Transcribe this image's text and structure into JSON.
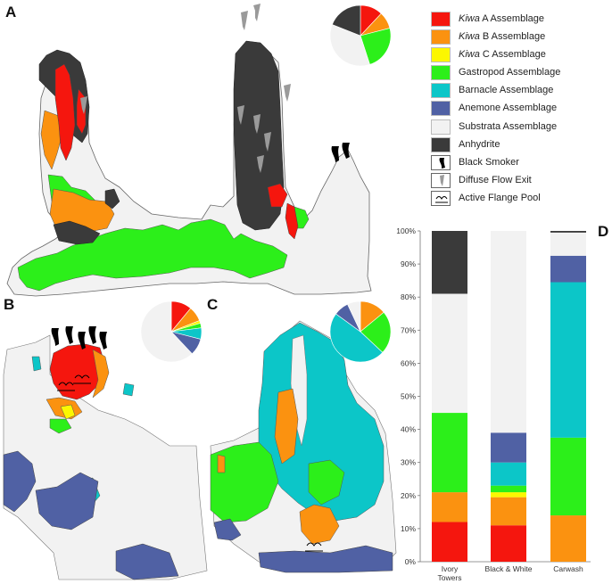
{
  "panels": {
    "a": {
      "letter": "A"
    },
    "b": {
      "letter": "B"
    },
    "c": {
      "letter": "C"
    },
    "d": {
      "letter": "D"
    }
  },
  "legend": [
    {
      "key": "kiwa_a",
      "italic": "Kiwa",
      "rest": " A Assemblage",
      "color": "#f5160e"
    },
    {
      "key": "kiwa_b",
      "italic": "Kiwa",
      "rest": " B Assemblage",
      "color": "#fb9210"
    },
    {
      "key": "kiwa_c",
      "italic": "Kiwa",
      "rest": " C Assemblage",
      "color": "#fcf700"
    },
    {
      "key": "gastropod",
      "italic": "",
      "rest": "Gastropod Assemblage",
      "color": "#2cef1a"
    },
    {
      "key": "barnacle",
      "italic": "",
      "rest": "Barnacle Assemblage",
      "color": "#0cc6c8"
    },
    {
      "key": "anemone",
      "italic": "",
      "rest": "Anemone Assemblage",
      "color": "#5061a4"
    },
    {
      "key": "substrata",
      "italic": "",
      "rest": "Substrata Assemblage",
      "color": "#f2f2f2"
    },
    {
      "key": "anhydrite",
      "italic": "",
      "rest": "Anhydrite",
      "color": "#3a3a3a"
    },
    {
      "key": "black_smoker",
      "italic": "",
      "rest": "Black Smoker",
      "icon": "black-smoker-icon"
    },
    {
      "key": "diffuse_flow",
      "italic": "",
      "rest": "Diffuse Flow Exit",
      "icon": "diffuse-flow-icon"
    },
    {
      "key": "flange_pool",
      "italic": "",
      "rest": "Active Flange Pool",
      "icon": "flange-pool-icon"
    }
  ],
  "pies": {
    "a": {
      "order": [
        "kiwa_a",
        "kiwa_b",
        "kiwa_c",
        "gastropod",
        "barnacle",
        "anemone",
        "substrata",
        "anhydrite"
      ],
      "values": [
        12,
        9,
        0,
        24,
        0,
        0,
        36,
        19
      ]
    },
    "b": {
      "order": [
        "kiwa_a",
        "kiwa_b",
        "kiwa_c",
        "gastropod",
        "barnacle",
        "anemone",
        "substrata",
        "anhydrite"
      ],
      "values": [
        11,
        8,
        1.5,
        2.5,
        6,
        9,
        62,
        0
      ]
    },
    "c": {
      "order": [
        "kiwa_a",
        "kiwa_b",
        "kiwa_c",
        "gastropod",
        "barnacle",
        "anemone",
        "substrata",
        "anhydrite"
      ],
      "values": [
        0,
        14,
        0,
        23,
        48,
        8,
        7,
        0
      ]
    }
  },
  "chart_data": {
    "type": "bar",
    "stacked": true,
    "categories": [
      "Ivory Towers",
      "Black & White",
      "Carwash"
    ],
    "category_lines": [
      [
        "Ivory",
        "Towers"
      ],
      [
        "Black & White"
      ],
      [
        "Carwash"
      ]
    ],
    "yticks": [
      "0%",
      "10%",
      "20%",
      "30%",
      "40%",
      "50%",
      "60%",
      "70%",
      "80%",
      "90%",
      "100%"
    ],
    "ylim": [
      0,
      100
    ],
    "series": [
      {
        "key": "kiwa_a",
        "values": [
          12,
          11,
          0
        ]
      },
      {
        "key": "kiwa_b",
        "values": [
          9,
          8.5,
          14
        ]
      },
      {
        "key": "kiwa_c",
        "values": [
          0,
          1.5,
          0
        ]
      },
      {
        "key": "gastropod",
        "values": [
          24,
          2,
          23.5
        ]
      },
      {
        "key": "barnacle",
        "values": [
          0,
          7,
          47
        ]
      },
      {
        "key": "anemone",
        "values": [
          0,
          9,
          8
        ]
      },
      {
        "key": "substrata",
        "values": [
          36,
          61,
          7
        ]
      },
      {
        "key": "anhydrite",
        "values": [
          19,
          0,
          0.5
        ]
      }
    ]
  }
}
